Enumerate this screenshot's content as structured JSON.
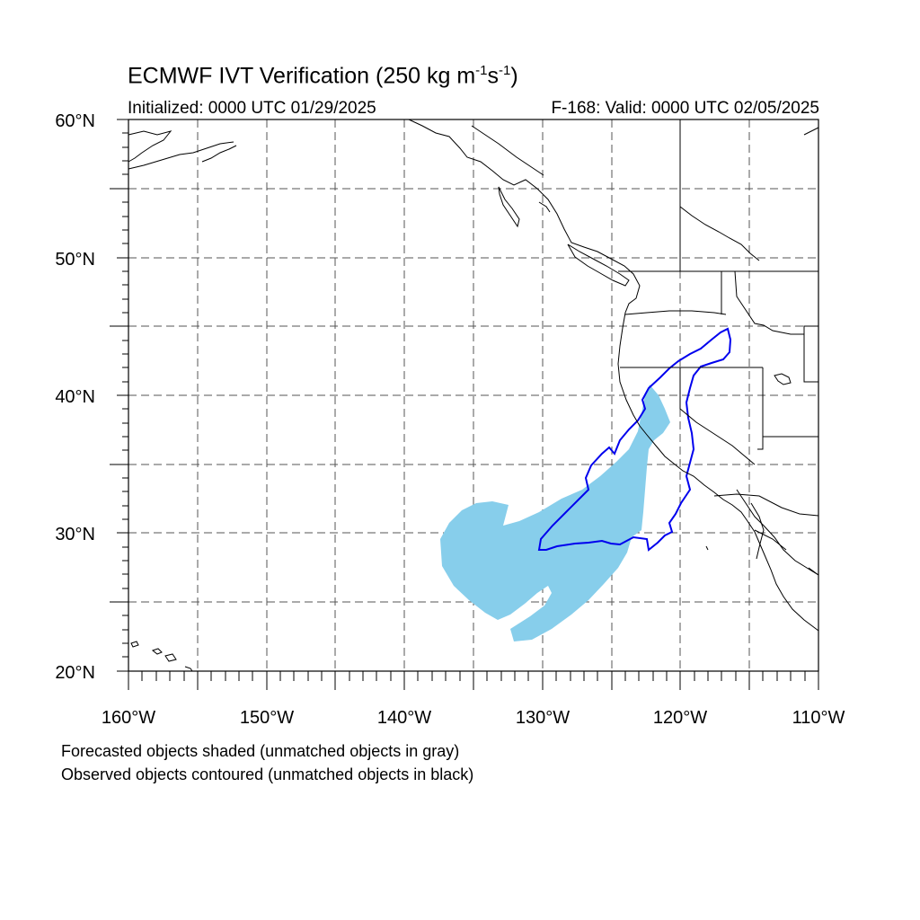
{
  "map": {
    "title_main": "ECMWF IVT Verification (250 kg m",
    "title_sup1": "-1",
    "title_mid": "s",
    "title_sup2": "-1",
    "title_end": ")",
    "initialized": "Initialized: 0000 UTC 01/29/2025",
    "valid": "F-168: Valid: 0000 UTC 02/05/2025",
    "lat_labels": [
      "60°N",
      "50°N",
      "40°N",
      "30°N",
      "20°N"
    ],
    "lon_labels": [
      "160°W",
      "150°W",
      "140°W",
      "130°W",
      "120°W",
      "110°W"
    ],
    "lat_range": [
      20,
      60
    ],
    "lon_range": [
      -160,
      -110
    ],
    "grid_spacing_deg": 5,
    "gridlines": "dashed",
    "forecast_fill_color": "#87ceeb",
    "observed_contour_color": "#0000ff",
    "coastline_color": "#000000"
  },
  "legend": {
    "note1": "Forecasted objects shaded (unmatched objects in gray)",
    "note2": "Observed objects contoured (unmatched objects in black)"
  }
}
